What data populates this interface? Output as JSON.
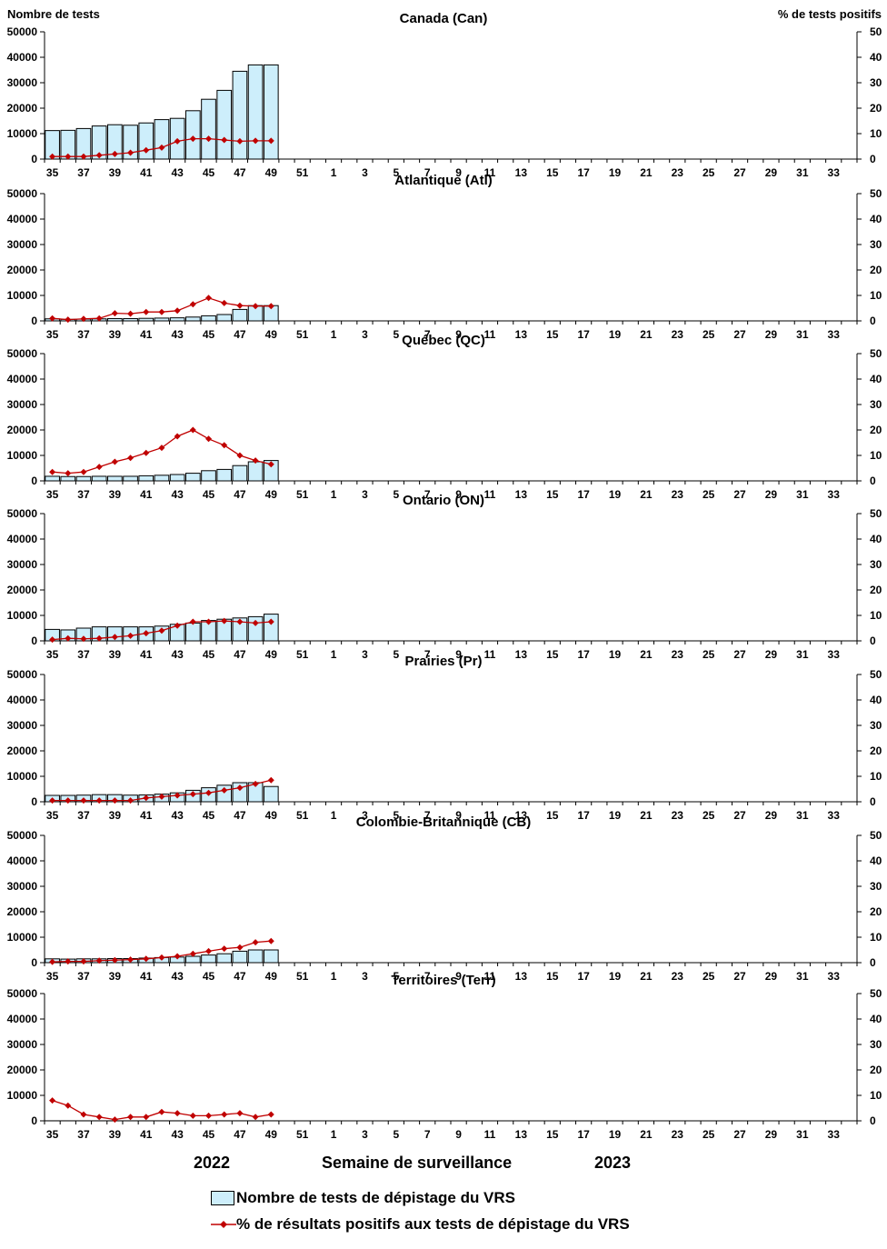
{
  "header": {
    "left_axis_title": "Nombre de tests",
    "right_axis_title": "%  de tests positifs"
  },
  "footer": {
    "year_left": "2022",
    "x_axis_title": "Semaine de surveillance",
    "year_right": "2023"
  },
  "legend": {
    "bars_label": "Nombre de tests de dépistage du VRS",
    "line_label": "% de résultats positifs aux tests de dépistage du VRS"
  },
  "colors": {
    "bar_fill": "#cdeefb",
    "bar_stroke": "#000000",
    "line": "#c00000",
    "marker": "#c00000"
  },
  "chart_data": [
    {
      "type": "bar+line",
      "title": "Canada (Can)",
      "x_ticks": [
        "35",
        "37",
        "39",
        "41",
        "43",
        "45",
        "47",
        "49",
        "51",
        "1",
        "3",
        "5",
        "7",
        "9",
        "11",
        "13",
        "15",
        "17",
        "19",
        "21",
        "23",
        "25",
        "27",
        "29",
        "31",
        "33"
      ],
      "weeks": [
        35,
        36,
        37,
        38,
        39,
        40,
        41,
        42,
        43,
        44,
        45,
        46,
        47,
        48,
        49
      ],
      "series": [
        {
          "name": "Nombre de tests de dépistage du VRS",
          "axis": "left",
          "type": "bar",
          "values": [
            11200,
            11300,
            12000,
            13000,
            13500,
            13300,
            14200,
            15500,
            16000,
            19000,
            23500,
            27000,
            34500,
            37000,
            37000
          ]
        },
        {
          "name": "% de résultats positifs aux tests de dépistage du VRS",
          "axis": "right",
          "type": "line",
          "values": [
            1,
            1,
            1,
            1.5,
            2,
            2.5,
            3.5,
            4.5,
            7,
            8,
            8,
            7.5,
            7,
            7.2,
            7.2
          ]
        }
      ],
      "ylim_left": [
        0,
        50000
      ],
      "yticks_left": [
        0,
        10000,
        20000,
        30000,
        40000,
        50000
      ],
      "ylim_right": [
        0,
        50
      ],
      "yticks_right": [
        0,
        10,
        20,
        30,
        40,
        50
      ]
    },
    {
      "type": "bar+line",
      "title": "Atlantique (Atl)",
      "x_ticks": [
        "35",
        "37",
        "39",
        "41",
        "43",
        "45",
        "47",
        "49",
        "51",
        "1",
        "3",
        "5",
        "7",
        "9",
        "11",
        "13",
        "15",
        "17",
        "19",
        "21",
        "23",
        "25",
        "27",
        "29",
        "31",
        "33"
      ],
      "weeks": [
        35,
        36,
        37,
        38,
        39,
        40,
        41,
        42,
        43,
        44,
        45,
        46,
        47,
        48,
        49
      ],
      "series": [
        {
          "name": "Nombre de tests de dépistage du VRS",
          "axis": "left",
          "type": "bar",
          "values": [
            800,
            600,
            700,
            800,
            900,
            900,
            1000,
            1100,
            1200,
            1500,
            2000,
            2500,
            4500,
            6000,
            6000
          ]
        },
        {
          "name": "% de résultats positifs aux tests de dépistage du VRS",
          "axis": "right",
          "type": "line",
          "values": [
            1,
            0.5,
            0.8,
            1,
            3,
            2.8,
            3.5,
            3.5,
            4,
            6.5,
            9,
            7,
            6,
            5.8,
            5.8
          ]
        }
      ],
      "ylim_left": [
        0,
        50000
      ],
      "yticks_left": [
        0,
        10000,
        20000,
        30000,
        40000,
        50000
      ],
      "ylim_right": [
        0,
        50
      ],
      "yticks_right": [
        0,
        10,
        20,
        30,
        40,
        50
      ]
    },
    {
      "type": "bar+line",
      "title": "Québec (QC)",
      "x_ticks": [
        "35",
        "37",
        "39",
        "41",
        "43",
        "45",
        "47",
        "49",
        "51",
        "1",
        "3",
        "5",
        "7",
        "9",
        "11",
        "13",
        "15",
        "17",
        "19",
        "21",
        "23",
        "25",
        "27",
        "29",
        "31",
        "33"
      ],
      "weeks": [
        35,
        36,
        37,
        38,
        39,
        40,
        41,
        42,
        43,
        44,
        45,
        46,
        47,
        48,
        49
      ],
      "series": [
        {
          "name": "Nombre de tests de dépistage du VRS",
          "axis": "left",
          "type": "bar",
          "values": [
            1800,
            1700,
            1700,
            1800,
            1800,
            1800,
            2000,
            2200,
            2500,
            3000,
            4000,
            4500,
            6000,
            7500,
            8000
          ]
        },
        {
          "name": "% de résultats positifs aux tests de dépistage du VRS",
          "axis": "right",
          "type": "line",
          "values": [
            3.5,
            3,
            3.5,
            5.5,
            7.5,
            9,
            11,
            13,
            17.5,
            20,
            16.5,
            14,
            10,
            8,
            6.5
          ]
        }
      ],
      "ylim_left": [
        0,
        50000
      ],
      "yticks_left": [
        0,
        10000,
        20000,
        30000,
        40000,
        50000
      ],
      "ylim_right": [
        0,
        50
      ],
      "yticks_right": [
        0,
        10,
        20,
        30,
        40,
        50
      ]
    },
    {
      "type": "bar+line",
      "title": "Ontario (ON)",
      "x_ticks": [
        "35",
        "37",
        "39",
        "41",
        "43",
        "45",
        "47",
        "49",
        "51",
        "1",
        "3",
        "5",
        "7",
        "9",
        "11",
        "13",
        "15",
        "17",
        "19",
        "21",
        "23",
        "25",
        "27",
        "29",
        "31",
        "33"
      ],
      "weeks": [
        35,
        36,
        37,
        38,
        39,
        40,
        41,
        42,
        43,
        44,
        45,
        46,
        47,
        48,
        49
      ],
      "series": [
        {
          "name": "Nombre de tests de dépistage du VRS",
          "axis": "left",
          "type": "bar",
          "values": [
            4500,
            4300,
            5000,
            5500,
            5500,
            5500,
            5500,
            5800,
            6500,
            7000,
            8000,
            8500,
            9000,
            9500,
            10500
          ]
        },
        {
          "name": "% de résultats positifs aux tests de dépistage du VRS",
          "axis": "right",
          "type": "line",
          "values": [
            0.5,
            1,
            0.8,
            1,
            1.5,
            2,
            3,
            4,
            6,
            7.5,
            7.5,
            7.8,
            7.5,
            7,
            7.5
          ]
        }
      ],
      "ylim_left": [
        0,
        50000
      ],
      "yticks_left": [
        0,
        10000,
        20000,
        30000,
        40000,
        50000
      ],
      "ylim_right": [
        0,
        50
      ],
      "yticks_right": [
        0,
        10,
        20,
        30,
        40,
        50
      ]
    },
    {
      "type": "bar+line",
      "title": "Prairies (Pr)",
      "x_ticks": [
        "35",
        "37",
        "39",
        "41",
        "43",
        "45",
        "47",
        "49",
        "51",
        "1",
        "3",
        "5",
        "7",
        "9",
        "11",
        "13",
        "15",
        "17",
        "19",
        "21",
        "23",
        "25",
        "27",
        "29",
        "31",
        "33"
      ],
      "weeks": [
        35,
        36,
        37,
        38,
        39,
        40,
        41,
        42,
        43,
        44,
        45,
        46,
        47,
        48,
        49
      ],
      "series": [
        {
          "name": "Nombre de tests de dépistage du VRS",
          "axis": "left",
          "type": "bar",
          "values": [
            2500,
            2500,
            2600,
            2800,
            2800,
            2600,
            2700,
            3000,
            3500,
            4500,
            5500,
            6500,
            7500,
            7500,
            6000
          ]
        },
        {
          "name": "% de résultats positifs aux tests de dépistage du VRS",
          "axis": "right",
          "type": "line",
          "values": [
            0.5,
            0.5,
            0.5,
            0.5,
            0.5,
            0.5,
            1.5,
            2,
            2.5,
            3,
            3.5,
            4.5,
            5.5,
            7,
            8.5
          ]
        }
      ],
      "ylim_left": [
        0,
        50000
      ],
      "yticks_left": [
        0,
        10000,
        20000,
        30000,
        40000,
        50000
      ],
      "ylim_right": [
        0,
        50
      ],
      "yticks_right": [
        0,
        10,
        20,
        30,
        40,
        50
      ]
    },
    {
      "type": "bar+line",
      "title": "Colombie-Britannique (CB)",
      "x_ticks": [
        "35",
        "37",
        "39",
        "41",
        "43",
        "45",
        "47",
        "49",
        "51",
        "1",
        "3",
        "5",
        "7",
        "9",
        "11",
        "13",
        "15",
        "17",
        "19",
        "21",
        "23",
        "25",
        "27",
        "29",
        "31",
        "33"
      ],
      "weeks": [
        35,
        36,
        37,
        38,
        39,
        40,
        41,
        42,
        43,
        44,
        45,
        46,
        47,
        48,
        49
      ],
      "series": [
        {
          "name": "Nombre de tests de dépistage du VRS",
          "axis": "left",
          "type": "bar",
          "values": [
            1500,
            1400,
            1500,
            1500,
            1600,
            1600,
            1800,
            2000,
            2200,
            2500,
            3000,
            3500,
            4500,
            5000,
            5000
          ]
        },
        {
          "name": "% de résultats positifs aux tests de dépistage du VRS",
          "axis": "right",
          "type": "line",
          "values": [
            0.3,
            0.5,
            0.5,
            0.8,
            1,
            1.2,
            1.5,
            2,
            2.5,
            3.5,
            4.5,
            5.5,
            6,
            8,
            8.5
          ]
        }
      ],
      "ylim_left": [
        0,
        50000
      ],
      "yticks_left": [
        0,
        10000,
        20000,
        30000,
        40000,
        50000
      ],
      "ylim_right": [
        0,
        50
      ],
      "yticks_right": [
        0,
        10,
        20,
        30,
        40,
        50
      ]
    },
    {
      "type": "bar+line",
      "title": "Territoires (Terr)",
      "x_ticks": [
        "35",
        "37",
        "39",
        "41",
        "43",
        "45",
        "47",
        "49",
        "51",
        "1",
        "3",
        "5",
        "7",
        "9",
        "11",
        "13",
        "15",
        "17",
        "19",
        "21",
        "23",
        "25",
        "27",
        "29",
        "31",
        "33"
      ],
      "weeks": [
        35,
        36,
        37,
        38,
        39,
        40,
        41,
        42,
        43,
        44,
        45,
        46,
        47,
        48,
        49
      ],
      "series": [
        {
          "name": "Nombre de tests de dépistage du VRS",
          "axis": "left",
          "type": "bar",
          "values": [
            20,
            20,
            20,
            20,
            20,
            20,
            20,
            20,
            20,
            20,
            20,
            20,
            20,
            20,
            20
          ]
        },
        {
          "name": "% de résultats positifs aux tests de dépistage du VRS",
          "axis": "right",
          "type": "line",
          "values": [
            8,
            6,
            2.5,
            1.5,
            0.5,
            1.5,
            1.5,
            3.5,
            3,
            2,
            2,
            2.5,
            3,
            1.5,
            2.5
          ]
        }
      ],
      "ylim_left": [
        0,
        50000
      ],
      "yticks_left": [
        0,
        10000,
        20000,
        30000,
        40000,
        50000
      ],
      "ylim_right": [
        0,
        50
      ],
      "yticks_right": [
        0,
        10,
        20,
        30,
        40,
        50
      ]
    }
  ]
}
